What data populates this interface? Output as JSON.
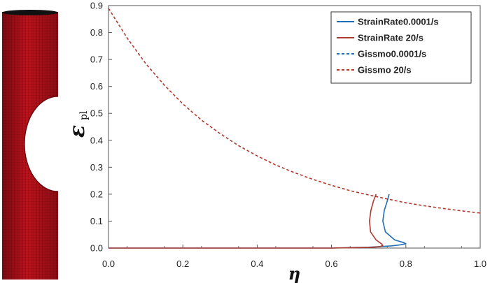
{
  "chart_data": {
    "type": "line",
    "xlabel": "η",
    "ylabel": "ε",
    "ylabel_sub": "pl",
    "xlim": [
      0,
      1.0
    ],
    "ylim": [
      0,
      0.9
    ],
    "x_ticks": [
      0.0,
      0.2,
      0.4,
      0.6,
      0.8,
      1.0
    ],
    "x_tick_labels": [
      "0.0",
      "0.2",
      "0.4",
      "0.6",
      "0.8",
      "1.0"
    ],
    "y_ticks": [
      0.0,
      0.1,
      0.2,
      0.3,
      0.4,
      0.5,
      0.6,
      0.7,
      0.8,
      0.9
    ],
    "y_tick_labels": [
      "0.0",
      "0.1",
      "0.2",
      "0.3",
      "0.4",
      "0.5",
      "0.6",
      "0.7",
      "0.8",
      "0.9"
    ],
    "grid": false,
    "legend_position": "top-right",
    "series": [
      {
        "name": "StrainRate0.0001/s",
        "color": "#1f6fb5",
        "dash": "solid",
        "x": [
          0.0,
          0.3,
          0.6,
          0.7,
          0.76,
          0.785,
          0.8,
          0.795,
          0.77,
          0.745,
          0.738,
          0.742,
          0.75,
          0.755
        ],
        "y": [
          0.0,
          0.0,
          0.0,
          0.003,
          0.008,
          0.012,
          0.016,
          0.02,
          0.03,
          0.06,
          0.1,
          0.14,
          0.175,
          0.2
        ]
      },
      {
        "name": "StrainRate 20/s",
        "color": "#b03a2e",
        "dash": "solid",
        "x": [
          0.0,
          0.3,
          0.6,
          0.7,
          0.73,
          0.738,
          0.735,
          0.72,
          0.705,
          0.702,
          0.706,
          0.713,
          0.72
        ],
        "y": [
          0.0,
          0.0,
          0.0,
          0.002,
          0.005,
          0.01,
          0.015,
          0.03,
          0.06,
          0.1,
          0.14,
          0.175,
          0.2
        ]
      },
      {
        "name": "Gissmo0.0001/s",
        "color": "#1f6fb5",
        "dash": "dashed",
        "x": [],
        "y": []
      },
      {
        "name": "Gissmo 20/s",
        "color": "#b03a2e",
        "dash": "dashed",
        "x": [
          0.0,
          0.05,
          0.1,
          0.15,
          0.2,
          0.25,
          0.3,
          0.35,
          0.4,
          0.45,
          0.5,
          0.55,
          0.6,
          0.65,
          0.7,
          0.75,
          0.8,
          0.85,
          0.9,
          0.95,
          1.0
        ],
        "y": [
          0.89,
          0.78,
          0.685,
          0.605,
          0.535,
          0.475,
          0.425,
          0.38,
          0.342,
          0.308,
          0.28,
          0.255,
          0.233,
          0.213,
          0.197,
          0.182,
          0.168,
          0.157,
          0.147,
          0.138,
          0.13
        ]
      }
    ]
  }
}
